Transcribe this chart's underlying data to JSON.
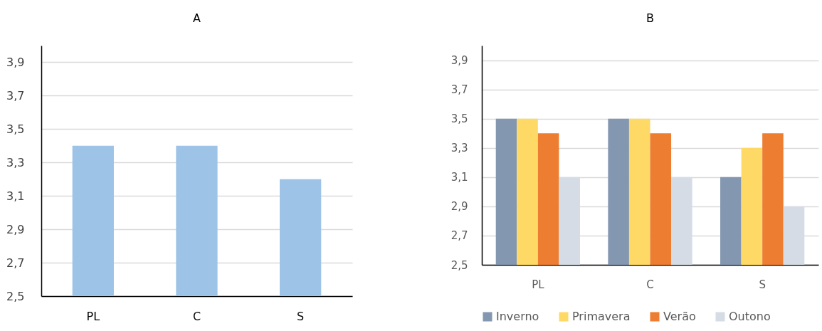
{
  "chart_data": [
    {
      "type": "bar",
      "title": "A",
      "categories": [
        "PL",
        "C",
        "S"
      ],
      "values": [
        3.4,
        3.4,
        3.2
      ],
      "color": "#9dc3e6",
      "ylim": [
        2.5,
        4.0
      ],
      "yticks": [
        {
          "value": 2.5,
          "label": "2,5"
        },
        {
          "value": 2.7,
          "label": "2,7"
        },
        {
          "value": 2.9,
          "label": "2,9"
        },
        {
          "value": 3.1,
          "label": "3,1"
        },
        {
          "value": 3.3,
          "label": "3,3"
        },
        {
          "value": 3.5,
          "label": "3,5"
        },
        {
          "value": 3.7,
          "label": "3,7"
        },
        {
          "value": 3.9,
          "label": "3,9"
        }
      ],
      "grid": "y"
    },
    {
      "type": "bar",
      "title": "B",
      "categories": [
        "PL",
        "C",
        "S"
      ],
      "series": [
        {
          "name": "Inverno",
          "color": "#8497b0",
          "values": [
            3.5,
            3.5,
            3.1
          ]
        },
        {
          "name": "Primavera",
          "color": "#ffd966",
          "values": [
            3.5,
            3.5,
            3.3
          ]
        },
        {
          "name": "Verão",
          "color": "#ed7d31",
          "values": [
            3.4,
            3.4,
            3.4
          ]
        },
        {
          "name": "Outono",
          "color": "#d6dce5",
          "values": [
            3.1,
            3.1,
            2.9
          ]
        }
      ],
      "ylim": [
        2.5,
        4.0
      ],
      "yticks": [
        {
          "value": 2.5,
          "label": "2,5"
        },
        {
          "value": 2.7,
          "label": "2,7"
        },
        {
          "value": 2.9,
          "label": "2,9"
        },
        {
          "value": 3.1,
          "label": "3,1"
        },
        {
          "value": 3.3,
          "label": "3,3"
        },
        {
          "value": 3.5,
          "label": "3,5"
        },
        {
          "value": 3.7,
          "label": "3,7"
        },
        {
          "value": 3.9,
          "label": "3,9"
        }
      ],
      "grid": "y",
      "legend": "bottom"
    }
  ]
}
